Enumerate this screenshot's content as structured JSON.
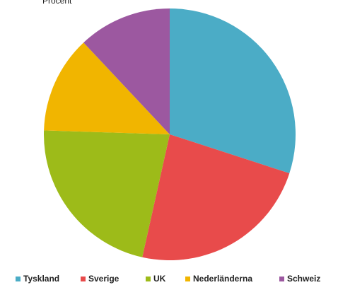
{
  "chart_data": {
    "type": "pie",
    "title": "Procent",
    "categories": [
      "Tyskland",
      "Sverige",
      "UK",
      "Nederländerna",
      "Schweiz"
    ],
    "values": [
      30,
      23.5,
      22,
      12.5,
      12
    ],
    "colors": [
      "#4bacc6",
      "#e84b4b",
      "#9dbb19",
      "#f1b500",
      "#9c58a0"
    ],
    "legend": "bottom"
  }
}
